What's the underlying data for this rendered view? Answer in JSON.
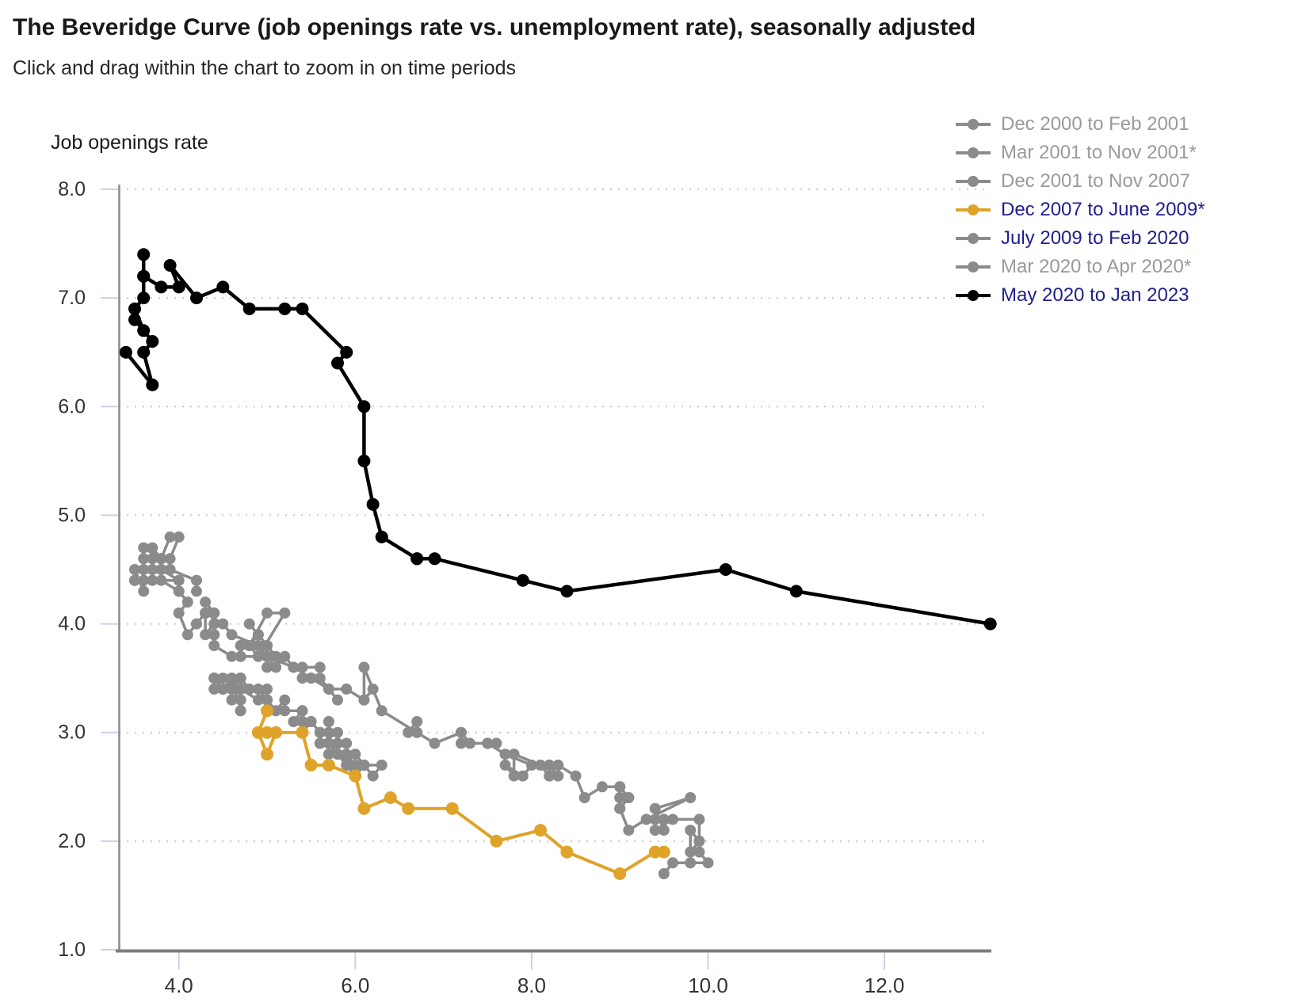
{
  "header": {
    "title": "The Beveridge Curve (job openings rate vs. unemployment rate), seasonally adjusted",
    "subtitle": "Click and drag within the chart to zoom in on time periods"
  },
  "chart_data": {
    "type": "line",
    "title": "The Beveridge Curve (job openings rate vs. unemployment rate), seasonally adjusted",
    "subtitle": "Click and drag within the chart to zoom in on time periods",
    "xlabel": "",
    "ylabel": "Job openings rate",
    "x_ticks": [
      {
        "v": 4,
        "label": "4.0"
      },
      {
        "v": 6,
        "label": "6.0"
      },
      {
        "v": 8,
        "label": "8.0"
      },
      {
        "v": 10,
        "label": "10.0"
      },
      {
        "v": 12,
        "label": "12.0"
      }
    ],
    "y_ticks": [
      {
        "v": 8,
        "label": "8.0"
      },
      {
        "v": 7,
        "label": "7.0"
      },
      {
        "v": 6,
        "label": "6.0"
      },
      {
        "v": 5,
        "label": "5.0"
      },
      {
        "v": 4,
        "label": "4.0"
      },
      {
        "v": 3,
        "label": "3.0"
      },
      {
        "v": 2,
        "label": "2.0"
      },
      {
        "v": 1,
        "label": "1.0"
      }
    ],
    "xlim": [
      3.32,
      13.17
    ],
    "ylim": [
      1.0,
      8.0
    ],
    "grid": "horizontal-dotted",
    "legend_position": "top-right",
    "colors": {
      "gray": "#8b8b8b",
      "gold": "#dfa32a",
      "black": "#000000",
      "legend_gray_text": "#9a9a9a",
      "legend_navy_text": "#20208f",
      "gridline": "#c9c9c9",
      "axis": "#7d7d7d",
      "tick": "#c9d2ea",
      "tick_label": "#333333"
    },
    "series": [
      {
        "name": "Dec 2000 to Feb 2001",
        "color": "#8b8b8b",
        "label_color": "#9a9a9a",
        "line_width": 3.5,
        "point_r": 7,
        "points": [
          [
            3.9,
            4.5
          ],
          [
            4.2,
            4.4
          ],
          [
            4.2,
            4.3
          ]
        ]
      },
      {
        "name": "Mar 2001 to Nov 2001*",
        "color": "#8b8b8b",
        "label_color": "#9a9a9a",
        "line_width": 3.5,
        "point_r": 7,
        "points": [
          [
            4.3,
            4.2
          ],
          [
            4.4,
            4.1
          ],
          [
            4.3,
            4.1
          ],
          [
            4.5,
            4.0
          ],
          [
            4.6,
            3.9
          ],
          [
            4.9,
            3.8
          ],
          [
            5.0,
            3.7
          ],
          [
            5.3,
            3.6
          ],
          [
            5.5,
            3.5
          ]
        ]
      },
      {
        "name": "Dec 2001 to Nov 2007",
        "color": "#8b8b8b",
        "label_color": "#9a9a9a",
        "line_width": 3.5,
        "point_r": 7,
        "points": [
          [
            5.7,
            3.1
          ],
          [
            5.7,
            3.1
          ],
          [
            5.7,
            3.0
          ],
          [
            5.7,
            2.9
          ],
          [
            5.9,
            2.9
          ],
          [
            5.8,
            2.9
          ],
          [
            5.8,
            2.8
          ],
          [
            5.8,
            2.9
          ],
          [
            5.7,
            2.8
          ],
          [
            5.7,
            2.9
          ],
          [
            5.7,
            2.8
          ],
          [
            5.9,
            2.8
          ],
          [
            6.0,
            2.7
          ],
          [
            5.8,
            2.8
          ],
          [
            5.9,
            2.7
          ],
          [
            5.9,
            2.7
          ],
          [
            6.0,
            2.6
          ],
          [
            6.1,
            2.7
          ],
          [
            6.3,
            2.7
          ],
          [
            6.2,
            2.6
          ],
          [
            6.1,
            2.7
          ],
          [
            6.1,
            2.7
          ],
          [
            6.0,
            2.8
          ],
          [
            5.8,
            2.8
          ],
          [
            5.7,
            2.9
          ],
          [
            5.7,
            2.9
          ],
          [
            5.6,
            2.9
          ],
          [
            5.8,
            3.0
          ],
          [
            5.6,
            2.9
          ],
          [
            5.6,
            3.0
          ],
          [
            5.6,
            3.0
          ],
          [
            5.5,
            3.1
          ],
          [
            5.4,
            3.0
          ],
          [
            5.4,
            3.1
          ],
          [
            5.5,
            3.1
          ],
          [
            5.4,
            3.1
          ],
          [
            5.4,
            3.2
          ],
          [
            5.3,
            3.1
          ],
          [
            5.4,
            3.2
          ],
          [
            5.2,
            3.2
          ],
          [
            5.2,
            3.3
          ],
          [
            5.1,
            3.2
          ],
          [
            5.0,
            3.3
          ],
          [
            5.0,
            3.3
          ],
          [
            4.9,
            3.4
          ],
          [
            5.0,
            3.3
          ],
          [
            5.0,
            3.3
          ],
          [
            5.0,
            3.4
          ],
          [
            4.9,
            3.3
          ],
          [
            4.7,
            3.4
          ],
          [
            4.8,
            3.4
          ],
          [
            4.7,
            3.5
          ],
          [
            4.7,
            3.5
          ],
          [
            4.6,
            3.4
          ],
          [
            4.6,
            3.5
          ],
          [
            4.7,
            3.4
          ],
          [
            4.7,
            3.5
          ],
          [
            4.5,
            3.4
          ],
          [
            4.4,
            3.5
          ],
          [
            4.5,
            3.4
          ],
          [
            4.4,
            3.5
          ],
          [
            4.6,
            3.5
          ],
          [
            4.5,
            3.4
          ],
          [
            4.4,
            3.5
          ],
          [
            4.5,
            3.5
          ],
          [
            4.4,
            3.4
          ],
          [
            4.6,
            3.4
          ],
          [
            4.7,
            3.3
          ],
          [
            4.6,
            3.3
          ],
          [
            4.7,
            3.3
          ],
          [
            4.7,
            3.2
          ],
          [
            4.7,
            3.2
          ]
        ]
      },
      {
        "name": "Dec 2007 to June 2009*",
        "color": "#dfa32a",
        "label_color": "#20208f",
        "line_width": 4,
        "point_r": 8,
        "points": [
          [
            5.0,
            3.2
          ],
          [
            4.9,
            3.0
          ],
          [
            5.0,
            2.8
          ],
          [
            5.1,
            3.0
          ],
          [
            5.0,
            3.0
          ],
          [
            5.4,
            3.0
          ],
          [
            5.5,
            2.7
          ],
          [
            5.7,
            2.7
          ],
          [
            6.0,
            2.6
          ],
          [
            6.1,
            2.3
          ],
          [
            6.4,
            2.4
          ],
          [
            6.6,
            2.3
          ],
          [
            7.1,
            2.3
          ],
          [
            7.6,
            2.0
          ],
          [
            8.1,
            2.1
          ],
          [
            8.4,
            1.9
          ],
          [
            9.0,
            1.7
          ],
          [
            9.4,
            1.9
          ],
          [
            9.5,
            1.9
          ]
        ]
      },
      {
        "name": "July 2009 to Feb 2020",
        "color": "#8b8b8b",
        "label_color": "#20208f",
        "line_width": 3.5,
        "point_r": 7,
        "points": [
          [
            9.5,
            1.7
          ],
          [
            9.6,
            1.8
          ],
          [
            9.8,
            1.8
          ],
          [
            10.0,
            1.8
          ],
          [
            9.9,
            1.9
          ],
          [
            9.9,
            2.0
          ],
          [
            9.8,
            2.1
          ],
          [
            9.8,
            1.9
          ],
          [
            9.9,
            2.0
          ],
          [
            9.9,
            2.2
          ],
          [
            9.6,
            2.2
          ],
          [
            9.4,
            2.1
          ],
          [
            9.4,
            2.2
          ],
          [
            9.5,
            2.2
          ],
          [
            9.5,
            2.1
          ],
          [
            9.4,
            2.3
          ],
          [
            9.8,
            2.4
          ],
          [
            9.3,
            2.2
          ],
          [
            9.1,
            2.1
          ],
          [
            9.0,
            2.3
          ],
          [
            9.0,
            2.3
          ],
          [
            9.1,
            2.4
          ],
          [
            9.0,
            2.4
          ],
          [
            9.1,
            2.4
          ],
          [
            9.0,
            2.5
          ],
          [
            9.0,
            2.4
          ],
          [
            9.0,
            2.5
          ],
          [
            8.8,
            2.5
          ],
          [
            8.6,
            2.4
          ],
          [
            8.5,
            2.6
          ],
          [
            8.3,
            2.7
          ],
          [
            8.3,
            2.6
          ],
          [
            8.2,
            2.7
          ],
          [
            8.2,
            2.6
          ],
          [
            8.2,
            2.7
          ],
          [
            8.2,
            2.7
          ],
          [
            8.2,
            2.6
          ],
          [
            8.1,
            2.7
          ],
          [
            7.8,
            2.8
          ],
          [
            7.8,
            2.6
          ],
          [
            7.7,
            2.7
          ],
          [
            7.9,
            2.6
          ],
          [
            8.0,
            2.7
          ],
          [
            7.7,
            2.8
          ],
          [
            7.5,
            2.9
          ],
          [
            7.6,
            2.9
          ],
          [
            7.5,
            2.9
          ],
          [
            7.5,
            2.9
          ],
          [
            7.3,
            2.9
          ],
          [
            7.2,
            3.0
          ],
          [
            7.2,
            2.9
          ],
          [
            7.2,
            3.0
          ],
          [
            6.9,
            2.9
          ],
          [
            6.7,
            3.0
          ],
          [
            6.6,
            3.0
          ],
          [
            6.7,
            3.1
          ],
          [
            6.7,
            3.0
          ],
          [
            6.3,
            3.2
          ],
          [
            6.1,
            3.6
          ],
          [
            6.1,
            3.3
          ],
          [
            6.2,
            3.4
          ],
          [
            6.1,
            3.3
          ],
          [
            5.9,
            3.4
          ],
          [
            5.7,
            3.4
          ],
          [
            5.8,
            3.3
          ],
          [
            5.6,
            3.5
          ],
          [
            5.7,
            3.4
          ],
          [
            5.5,
            3.5
          ],
          [
            5.4,
            3.5
          ],
          [
            5.4,
            3.6
          ],
          [
            5.6,
            3.6
          ],
          [
            5.3,
            3.6
          ],
          [
            5.2,
            3.7
          ],
          [
            5.1,
            3.6
          ],
          [
            5.0,
            3.7
          ],
          [
            5.0,
            3.6
          ],
          [
            5.1,
            3.7
          ],
          [
            5.0,
            3.8
          ],
          [
            4.8,
            3.8
          ],
          [
            4.9,
            3.7
          ],
          [
            5.2,
            4.1
          ],
          [
            5.0,
            4.1
          ],
          [
            4.8,
            3.8
          ],
          [
            4.9,
            3.9
          ],
          [
            4.8,
            4.0
          ],
          [
            4.9,
            3.9
          ],
          [
            5.0,
            3.8
          ],
          [
            4.9,
            3.7
          ],
          [
            4.7,
            3.7
          ],
          [
            4.7,
            3.8
          ],
          [
            4.7,
            3.7
          ],
          [
            4.6,
            3.7
          ],
          [
            4.4,
            3.8
          ],
          [
            4.4,
            3.9
          ],
          [
            4.4,
            4.0
          ],
          [
            4.3,
            3.9
          ],
          [
            4.3,
            4.1
          ],
          [
            4.4,
            4.1
          ],
          [
            4.3,
            4.1
          ],
          [
            4.2,
            4.0
          ],
          [
            4.2,
            4.0
          ],
          [
            4.1,
            3.9
          ],
          [
            4.0,
            4.1
          ],
          [
            4.1,
            4.2
          ],
          [
            4.0,
            4.3
          ],
          [
            4.0,
            4.3
          ],
          [
            3.8,
            4.4
          ],
          [
            4.0,
            4.4
          ],
          [
            3.8,
            4.5
          ],
          [
            3.8,
            4.6
          ],
          [
            3.7,
            4.7
          ],
          [
            3.8,
            4.6
          ],
          [
            3.8,
            4.6
          ],
          [
            3.9,
            4.6
          ],
          [
            4.0,
            4.8
          ],
          [
            3.9,
            4.8
          ],
          [
            3.8,
            4.6
          ],
          [
            3.6,
            4.7
          ],
          [
            3.6,
            4.6
          ],
          [
            3.7,
            4.6
          ],
          [
            3.7,
            4.5
          ],
          [
            3.7,
            4.4
          ],
          [
            3.5,
            4.4
          ],
          [
            3.6,
            4.4
          ],
          [
            3.6,
            4.5
          ],
          [
            3.6,
            4.3
          ],
          [
            3.5,
            4.5
          ],
          [
            3.5,
            4.4
          ]
        ]
      },
      {
        "name": "Mar 2020 to Apr 2020*",
        "color": "#8b8b8b",
        "label_color": "#9a9a9a",
        "line_width": 3.5,
        "point_r": 7,
        "points": [
          [
            4.4,
            3.9
          ]
        ]
      },
      {
        "name": "May 2020 to Jan 2023",
        "color": "#000000",
        "label_color": "#20208f",
        "line_width": 4.5,
        "point_r": 8,
        "points": [
          [
            13.2,
            4.0
          ],
          [
            11.0,
            4.3
          ],
          [
            10.2,
            4.5
          ],
          [
            8.4,
            4.3
          ],
          [
            7.9,
            4.4
          ],
          [
            6.9,
            4.6
          ],
          [
            6.7,
            4.6
          ],
          [
            6.7,
            4.6
          ],
          [
            6.3,
            4.8
          ],
          [
            6.2,
            5.1
          ],
          [
            6.1,
            5.5
          ],
          [
            6.1,
            6.0
          ],
          [
            5.8,
            6.4
          ],
          [
            5.9,
            6.5
          ],
          [
            5.4,
            6.9
          ],
          [
            5.2,
            6.9
          ],
          [
            4.8,
            6.9
          ],
          [
            4.5,
            7.1
          ],
          [
            4.2,
            7.0
          ],
          [
            3.9,
            7.3
          ],
          [
            4.0,
            7.1
          ],
          [
            3.8,
            7.1
          ],
          [
            3.6,
            7.2
          ],
          [
            3.6,
            7.4
          ],
          [
            3.6,
            7.2
          ],
          [
            3.6,
            7.0
          ],
          [
            3.5,
            6.9
          ],
          [
            3.6,
            6.7
          ],
          [
            3.5,
            6.8
          ],
          [
            3.7,
            6.6
          ],
          [
            3.6,
            6.5
          ],
          [
            3.7,
            6.2
          ],
          [
            3.4,
            6.5
          ]
        ]
      }
    ]
  }
}
